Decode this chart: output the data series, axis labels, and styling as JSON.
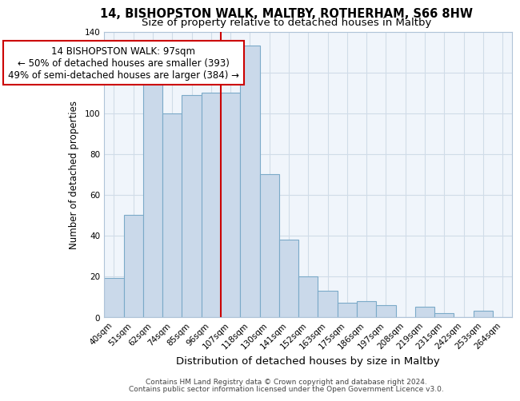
{
  "title": "14, BISHOPSTON WALK, MALTBY, ROTHERHAM, S66 8HW",
  "subtitle": "Size of property relative to detached houses in Maltby",
  "xlabel": "Distribution of detached houses by size in Maltby",
  "ylabel": "Number of detached properties",
  "bar_labels": [
    "40sqm",
    "51sqm",
    "62sqm",
    "74sqm",
    "85sqm",
    "96sqm",
    "107sqm",
    "118sqm",
    "130sqm",
    "141sqm",
    "152sqm",
    "163sqm",
    "175sqm",
    "186sqm",
    "197sqm",
    "208sqm",
    "219sqm",
    "231sqm",
    "242sqm",
    "253sqm",
    "264sqm"
  ],
  "bar_values": [
    19,
    50,
    118,
    100,
    109,
    110,
    110,
    133,
    70,
    38,
    20,
    13,
    7,
    8,
    6,
    0,
    5,
    2,
    0,
    3,
    0
  ],
  "bar_color": "#cad9ea",
  "bar_edge_color": "#7baac8",
  "vline_x_index": 5,
  "vline_color": "#cc0000",
  "annotation_title": "14 BISHOPSTON WALK: 97sqm",
  "annotation_line1": "← 50% of detached houses are smaller (393)",
  "annotation_line2": "49% of semi-detached houses are larger (384) →",
  "annotation_box_color": "#ffffff",
  "annotation_border_color": "#cc0000",
  "ylim": [
    0,
    140
  ],
  "yticks": [
    0,
    20,
    40,
    60,
    80,
    100,
    120,
    140
  ],
  "footer1": "Contains HM Land Registry data © Crown copyright and database right 2024.",
  "footer2": "Contains public sector information licensed under the Open Government Licence v3.0.",
  "title_fontsize": 10.5,
  "subtitle_fontsize": 9.5,
  "xlabel_fontsize": 9.5,
  "ylabel_fontsize": 8.5,
  "tick_fontsize": 7.5,
  "annotation_fontsize": 8.5,
  "footer_fontsize": 6.5,
  "grid_color": "#d0dce8",
  "bg_color": "#f0f5fb"
}
